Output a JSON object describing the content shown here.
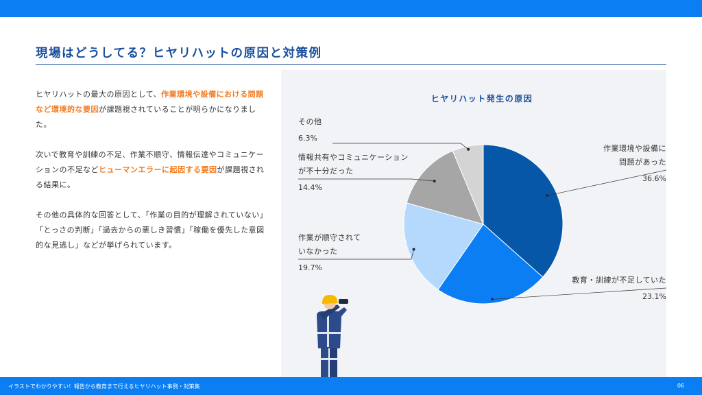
{
  "header": {
    "title": "現場はどうしてる？ヒヤリハットの原因と対策例"
  },
  "body": {
    "p1": [
      {
        "text": "ヒヤリハットの最大の原因として、",
        "highlight": false
      },
      {
        "text": "作業環境や設備における問題など環境的な要因",
        "highlight": true
      },
      {
        "text": "が課題視されていることが明らかになりました。",
        "highlight": false
      }
    ],
    "p2": [
      {
        "text": "次いで教育や訓練の不足、作業不順守、情報伝達やコミュニケーションの不足など",
        "highlight": false
      },
      {
        "text": "ヒューマンエラーに起因する要因",
        "highlight": true
      },
      {
        "text": "が課題視される結果に。",
        "highlight": false
      }
    ],
    "p3": [
      {
        "text": "その他の具体的な回答として、「作業の目的が理解されていない」「とっさの判断」「過去からの悪しき習慣」「稼働を優先した意図的な見逃し」などが挙げられています。",
        "highlight": false
      }
    ]
  },
  "chart_data": {
    "type": "pie",
    "title": "ヒヤリハット発生の原因",
    "slices": [
      {
        "label": [
          "作業環境や設備に",
          "問題があった"
        ],
        "value": 36.6,
        "value_label": "36.6%",
        "color": "#0757a8"
      },
      {
        "label": [
          "教育・訓練が不足していた"
        ],
        "value": 23.1,
        "value_label": "23.1%",
        "color": "#0a7ef2"
      },
      {
        "label": [
          "作業が順守されて",
          "いなかった"
        ],
        "value": 19.7,
        "value_label": "19.7%",
        "color": "#b4d9fd"
      },
      {
        "label": [
          "情報共有やコミュニケーション",
          "が不十分だった"
        ],
        "value": 14.4,
        "value_label": "14.4%",
        "color": "#a6a6a6"
      },
      {
        "label": [
          "その他"
        ],
        "value": 6.3,
        "value_label": "6.3%",
        "color": "#d4d4d4"
      }
    ]
  },
  "illustration": {
    "name": "worker-with-binoculars",
    "colors": {
      "helmet": "#f6b800",
      "uniform": "#2d4a8a",
      "stripe": "#dfe6ee"
    }
  },
  "footer": {
    "text": "イラストでわかりやすい！報告から教育まで行えるヒヤリハット事例・対策集",
    "page": "06"
  },
  "theme": {
    "accent": "#0a7ef2",
    "title_color": "#1a4f9c",
    "highlight": "#f47b20"
  }
}
